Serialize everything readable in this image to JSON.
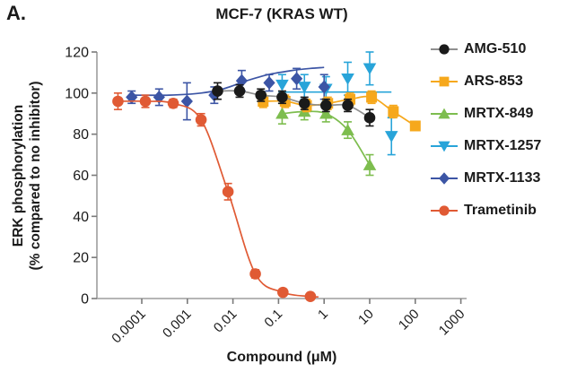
{
  "panel_label": "A.",
  "chart_data": {
    "type": "line",
    "title": "MCF-7 (KRAS WT)",
    "xlabel": "Compound (μM)",
    "ylabel": [
      "ERK phosphorylation",
      "(% compared to no inhibitor)"
    ],
    "x_scale": "log",
    "x_tick_labels": [
      "0.0001",
      "0.001",
      "0.01",
      "0.1",
      "1",
      "10",
      "100",
      "1000"
    ],
    "y_ticks": [
      0,
      20,
      40,
      60,
      80,
      100,
      120
    ],
    "ylim": [
      0,
      120
    ],
    "grid": false,
    "legend_position": "right",
    "axis_color": "#9e9e9e",
    "tick_color": "#7a7a7a",
    "text_color": "#1a1a1a",
    "series": [
      {
        "name": "AMG-510",
        "marker": "circle",
        "color": "#1a1a1a",
        "line_color": "#8f8f8f",
        "x": [
          0.0046,
          0.014,
          0.041,
          0.12,
          0.37,
          1.1,
          3.3,
          10
        ],
        "y": [
          101,
          101,
          99,
          98,
          95,
          94,
          94,
          88
        ],
        "err": [
          4,
          3,
          3,
          3,
          3,
          3,
          3,
          4
        ]
      },
      {
        "name": "ARS-853",
        "marker": "square",
        "color": "#F6A81C",
        "line_color": "#F6A81C",
        "x": [
          0.046,
          0.14,
          0.41,
          1.2,
          3.7,
          11,
          33,
          100
        ],
        "y": [
          96,
          96,
          94,
          95,
          97,
          98,
          91,
          84
        ],
        "err": [
          3,
          3,
          3,
          3,
          3,
          3,
          3,
          2
        ]
      },
      {
        "name": "MRTX-849",
        "marker": "triangle-up",
        "color": "#7DBD4E",
        "line_color": "#7DBD4E",
        "x": [
          0.12,
          0.37,
          1.1,
          3.3,
          10
        ],
        "y": [
          90,
          91,
          90,
          82,
          65
        ],
        "err": [
          5,
          4,
          4,
          4,
          5
        ]
      },
      {
        "name": "MRTX-1257",
        "marker": "triangle-down",
        "color": "#28A4D9",
        "line_color": "#28A4D9",
        "x": [
          0.12,
          0.37,
          1.1,
          3.3,
          10,
          30
        ],
        "y": [
          104,
          103,
          102,
          107,
          112,
          79
        ],
        "err": [
          5,
          6,
          6,
          8,
          8,
          9
        ],
        "fit": [
          [
            0.1,
            100.5
          ],
          [
            30,
            100.5
          ]
        ]
      },
      {
        "name": "MRTX-1133",
        "marker": "diamond",
        "color": "#3C55A5",
        "line_color": "#3C55A5",
        "x": [
          6e-05,
          0.00024,
          0.00098,
          0.0039,
          0.0156,
          0.0625,
          0.25,
          1
        ],
        "y": [
          98,
          98,
          96,
          99,
          106,
          105,
          107,
          103
        ],
        "err": [
          3,
          4,
          9,
          4,
          5,
          4,
          5,
          6
        ],
        "fit": [
          [
            6e-05,
            99
          ],
          [
            0.0004,
            99
          ],
          [
            0.002,
            100
          ],
          [
            0.006,
            102
          ],
          [
            0.02,
            106
          ],
          [
            0.06,
            109
          ],
          [
            0.2,
            111
          ],
          [
            0.5,
            112
          ],
          [
            1,
            112.5
          ]
        ]
      },
      {
        "name": "Trametinib",
        "marker": "circle",
        "color": "#E05A34",
        "line_color": "#E05A34",
        "x": [
          3e-05,
          0.00012,
          0.00049,
          0.002,
          0.0078,
          0.031,
          0.125,
          0.5
        ],
        "y": [
          96,
          96,
          95,
          87,
          52,
          12,
          3,
          1
        ],
        "err": [
          4,
          3,
          2,
          3,
          4,
          2,
          1,
          1
        ],
        "fit": [
          [
            3e-05,
            96
          ],
          [
            0.00012,
            96
          ],
          [
            0.00049,
            95
          ],
          [
            0.002,
            87
          ],
          [
            0.0078,
            52
          ],
          [
            0.031,
            12
          ],
          [
            0.125,
            3
          ],
          [
            0.5,
            1
          ],
          [
            0.75,
            0.8
          ]
        ]
      }
    ]
  }
}
